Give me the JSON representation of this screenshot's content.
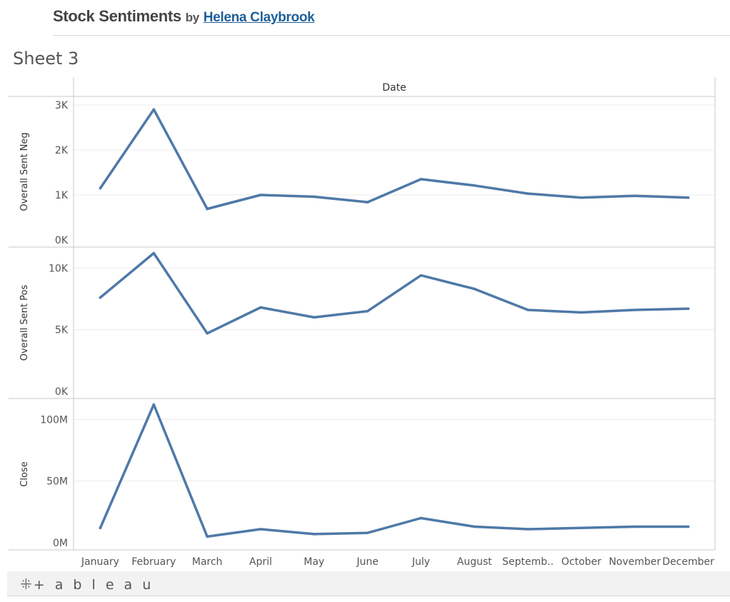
{
  "header": {
    "title": "Stock Sentiments",
    "by": "by",
    "author": "Helena Claybrook"
  },
  "sheet_title": "Sheet 3",
  "footer": {
    "logo_text": "+ a b l e a u"
  },
  "colors": {
    "line": "#4e79a7",
    "grid": "#ececec",
    "border": "#c8c8c8",
    "axis_text": "#555555"
  },
  "chart_data": {
    "type": "line",
    "column_header": "Date",
    "categories": [
      "January",
      "February",
      "March",
      "April",
      "May",
      "June",
      "July",
      "August",
      "Septemb..",
      "October",
      "November",
      "December"
    ],
    "panes": [
      {
        "ylabel": "Overall Sent Neg",
        "ylim": [
          0,
          3000
        ],
        "ticks": [
          0,
          1000,
          2000,
          3000
        ],
        "tick_labels": [
          "0K",
          "1K",
          "2K",
          "3K"
        ],
        "values": [
          1150,
          2900,
          690,
          1000,
          960,
          840,
          1350,
          1210,
          1030,
          940,
          980,
          940
        ]
      },
      {
        "ylabel": "Overall Sent Pos",
        "ylim": [
          0,
          11000
        ],
        "ticks": [
          0,
          5000,
          10000
        ],
        "tick_labels": [
          "0K",
          "5K",
          "10K"
        ],
        "values": [
          7600,
          11200,
          4700,
          6800,
          6000,
          6500,
          9400,
          8300,
          6600,
          6400,
          6600,
          6700
        ]
      },
      {
        "ylabel": "Close",
        "ylim": [
          0,
          110000000
        ],
        "ticks": [
          0,
          50000000,
          100000000
        ],
        "tick_labels": [
          "0M",
          "50M",
          "100M"
        ],
        "values": [
          12000000,
          112000000,
          5000000,
          11000000,
          7000000,
          8000000,
          20000000,
          13000000,
          11000000,
          12000000,
          13000000,
          13000000
        ]
      }
    ]
  }
}
